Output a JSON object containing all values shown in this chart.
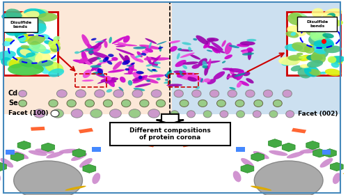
{
  "fig_width": 5.0,
  "fig_height": 2.8,
  "dpi": 100,
  "bg_left_color": "#fce8d8",
  "bg_right_color": "#cce0f0",
  "cd_color": "#cc99cc",
  "se_color": "#99cc88",
  "zoom_border_color": "#cc0000",
  "facet100_label": "Facet (100)",
  "facet002_label": "Facet (002)",
  "cd_label": "Cd",
  "se_label": "Se",
  "disulfide_label": "Disulfide\nbonds",
  "bottom_text": "Different compositions\nof protein corona",
  "outer_border_color": "#4488bb",
  "protein_purple": [
    "#cc00cc",
    "#aa00bb",
    "#dd22cc",
    "#9900aa",
    "#ee44dd"
  ],
  "protein_teal": [
    "#009999",
    "#00aaaa",
    "#33cccc",
    "#0088aa"
  ],
  "protein_blue": "#0000cc",
  "zoom_colors": [
    "#00cccc",
    "#22dddd",
    "#44eeee",
    "#99ff99",
    "#ccff44",
    "#ffff88",
    "#44bb88",
    "#00aa88",
    "#88cc44",
    "#ddee00"
  ]
}
